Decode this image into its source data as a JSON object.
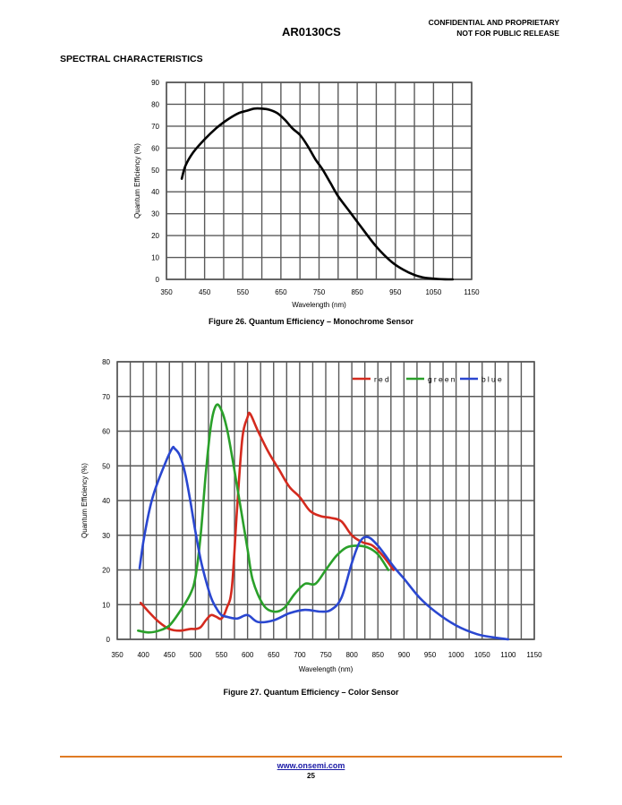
{
  "header": {
    "doc_title": "AR0130CS",
    "confidential_line1": "CONFIDENTIAL AND PROPRIETARY",
    "confidential_line2": "NOT FOR PUBLIC RELEASE"
  },
  "section_title": "SPECTRAL CHARACTERISTICS",
  "figures": {
    "fig26_caption": "Figure 26. Quantum Efficiency – Monochrome Sensor",
    "fig27_caption": "Figure 27. Quantum Efficiency – Color Sensor"
  },
  "footer": {
    "url": "www.onsemi.com",
    "page": "25"
  },
  "colors": {
    "red": "#d42a1e",
    "green": "#2aa02a",
    "blue": "#2a47d0",
    "mono": "#000000",
    "footer_rule": "#e07b24"
  },
  "chart_data": [
    {
      "type": "line",
      "title": "",
      "xlabel": "Wavelength (nm)",
      "ylabel": "Quantum Efficiency (%)",
      "xlim": [
        350,
        1150
      ],
      "ylim": [
        0,
        90
      ],
      "x_ticks": [
        350,
        450,
        550,
        650,
        750,
        850,
        950,
        1050,
        1150
      ],
      "y_ticks": [
        0,
        10,
        20,
        30,
        40,
        50,
        60,
        70,
        80,
        90
      ],
      "grid": true,
      "series": [
        {
          "name": "mono",
          "x": [
            390,
            400,
            420,
            450,
            480,
            510,
            540,
            560,
            580,
            600,
            620,
            640,
            660,
            680,
            700,
            720,
            740,
            760,
            780,
            800,
            830,
            860,
            900,
            940,
            970,
            1000,
            1020,
            1040,
            1060,
            1080,
            1100
          ],
          "y": [
            46,
            52,
            58,
            64,
            69,
            73,
            76,
            77,
            78,
            78,
            77.5,
            76,
            73,
            69,
            66,
            61,
            55,
            50,
            44,
            38,
            31,
            24,
            15,
            8,
            4.5,
            2,
            1,
            0.5,
            0.2,
            0.05,
            0
          ]
        }
      ]
    },
    {
      "type": "line",
      "title": "",
      "xlabel": "Wavelength (nm)",
      "ylabel": "Quantum Efficiency (%)",
      "xlim": [
        350,
        1150
      ],
      "ylim": [
        0,
        80
      ],
      "x_ticks": [
        350,
        400,
        450,
        500,
        550,
        600,
        650,
        700,
        750,
        800,
        850,
        900,
        950,
        1000,
        1050,
        1100,
        1150
      ],
      "y_ticks": [
        0,
        10,
        20,
        30,
        40,
        50,
        60,
        70,
        80
      ],
      "grid": true,
      "legend_position": "top-right",
      "series": [
        {
          "name": "red",
          "x": [
            395,
            410,
            430,
            450,
            470,
            490,
            500,
            510,
            520,
            530,
            540,
            550,
            560,
            570,
            580,
            590,
            600,
            605,
            620,
            640,
            660,
            680,
            700,
            720,
            740,
            760,
            780,
            800,
            820,
            840,
            860,
            880
          ],
          "y": [
            10.5,
            8,
            5,
            3,
            2.5,
            3,
            3,
            3.5,
            5.5,
            7,
            6.5,
            6,
            9,
            15,
            38,
            58,
            64,
            65,
            60,
            54,
            49,
            44,
            41,
            37,
            35.5,
            35,
            34,
            30,
            28,
            27,
            24,
            20
          ]
        },
        {
          "name": "green",
          "x": [
            390,
            410,
            430,
            450,
            470,
            490,
            500,
            510,
            520,
            530,
            540,
            550,
            560,
            570,
            580,
            590,
            600,
            610,
            630,
            650,
            670,
            690,
            710,
            730,
            750,
            770,
            790,
            810,
            830,
            850,
            870
          ],
          "y": [
            2.5,
            2,
            2.5,
            4,
            8,
            13,
            18,
            30,
            48,
            62,
            67.5,
            66,
            61,
            53,
            44,
            35,
            26,
            17,
            10,
            8,
            9,
            13,
            16,
            16,
            20,
            24,
            26.5,
            27,
            26.5,
            24.5,
            20
          ]
        },
        {
          "name": "blue",
          "x": [
            393,
            400,
            410,
            420,
            440,
            455,
            460,
            470,
            480,
            490,
            500,
            510,
            520,
            530,
            540,
            550,
            560,
            580,
            600,
            620,
            650,
            680,
            710,
            740,
            760,
            780,
            800,
            815,
            830,
            850,
            880,
            900,
            930,
            960,
            1000,
            1040,
            1070,
            1100
          ],
          "y": [
            20.5,
            28,
            36,
            42,
            50,
            55,
            55,
            53,
            48,
            40,
            31,
            23,
            17,
            12,
            9,
            7,
            6.5,
            6,
            7,
            5,
            5.5,
            7.5,
            8.5,
            8,
            8.5,
            12,
            22,
            28,
            29.5,
            27,
            21,
            17.5,
            12,
            8,
            4,
            1.5,
            0.6,
            0
          ]
        }
      ]
    }
  ]
}
